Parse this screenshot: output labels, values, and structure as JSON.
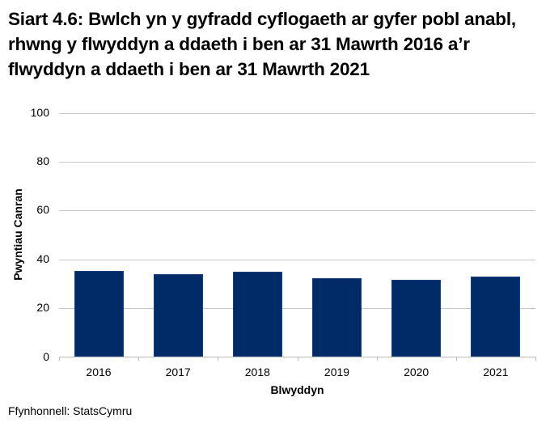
{
  "title": "Siart 4.6: Bwlch yn y gyfradd cyflogaeth ar gyfer pobl anabl, rhwng y flwyddyn a ddaeth i ben ar 31 Mawrth 2016 a’r flwyddyn a ddaeth i ben ar 31 Mawrth 2021",
  "source": "Ffynhonnell: StatsCymru",
  "colors": {
    "bar": "#002b66",
    "grid": "#c8c8c8"
  },
  "chart_data": {
    "type": "bar",
    "title": "Siart 4.6: Bwlch yn y gyfradd cyflogaeth ar gyfer pobl anabl, rhwng y flwyddyn a ddaeth i ben ar 31 Mawrth 2016 a’r flwyddyn a ddaeth i ben ar 31 Mawrth 2021",
    "categories": [
      "2016",
      "2017",
      "2018",
      "2019",
      "2020",
      "2021"
    ],
    "values": [
      35.4,
      33.9,
      35.0,
      32.4,
      31.7,
      33.1
    ],
    "xlabel": "Blwyddyn",
    "ylabel": "Pwyntiau Canran",
    "ylim": [
      0,
      100
    ],
    "yticks": [
      "0",
      "20",
      "40",
      "60",
      "80",
      "100"
    ],
    "grid": true,
    "legend": null
  }
}
